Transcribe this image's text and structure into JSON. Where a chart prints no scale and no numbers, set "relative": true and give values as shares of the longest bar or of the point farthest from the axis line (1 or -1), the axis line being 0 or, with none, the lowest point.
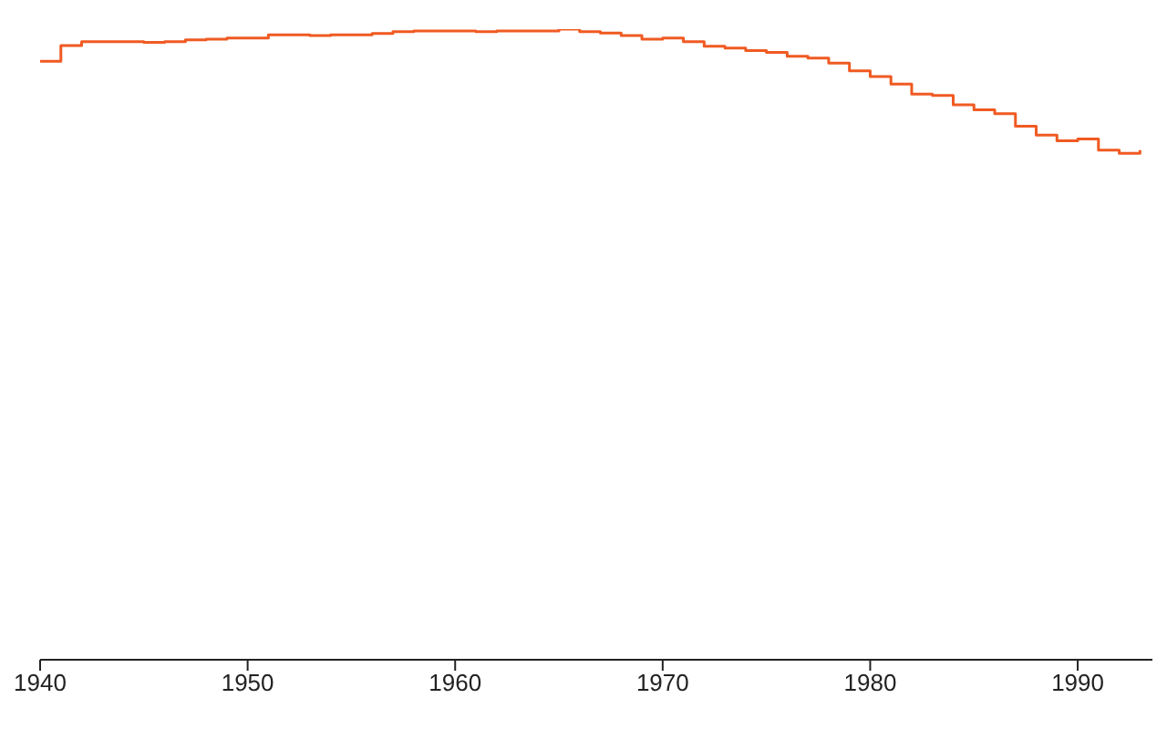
{
  "chart_data": {
    "type": "step",
    "relative": true,
    "x": [
      1940,
      1941,
      1942,
      1943,
      1944,
      1945,
      1946,
      1947,
      1948,
      1949,
      1950,
      1951,
      1952,
      1953,
      1954,
      1955,
      1956,
      1957,
      1958,
      1959,
      1960,
      1961,
      1962,
      1963,
      1964,
      1965,
      1966,
      1967,
      1968,
      1969,
      1970,
      1971,
      1972,
      1973,
      1974,
      1975,
      1976,
      1977,
      1978,
      1979,
      1980,
      1981,
      1982,
      1983,
      1984,
      1985,
      1986,
      1987,
      1988,
      1989,
      1990,
      1991,
      1992,
      1993
    ],
    "series": [
      {
        "color": "#f05a22",
        "values": [
          0.949,
          0.974,
          0.98,
          0.98,
          0.98,
          0.979,
          0.98,
          0.983,
          0.984,
          0.986,
          0.986,
          0.991,
          0.991,
          0.99,
          0.991,
          0.991,
          0.993,
          0.996,
          0.997,
          0.997,
          0.997,
          0.996,
          0.997,
          0.997,
          0.997,
          1,
          0.996,
          0.994,
          0.99,
          0.984,
          0.986,
          0.98,
          0.973,
          0.97,
          0.966,
          0.963,
          0.957,
          0.954,
          0.946,
          0.934,
          0.925,
          0.913,
          0.897,
          0.895,
          0.88,
          0.872,
          0.866,
          0.846,
          0.832,
          0.823,
          0.826,
          0.808,
          0.803,
          0.808
        ]
      }
    ],
    "xlim": [
      1940,
      1993.6
    ],
    "xticks": [
      1940,
      1950,
      1960,
      1970,
      1980,
      1990
    ],
    "grid": false,
    "legend": false,
    "marker": "none"
  }
}
